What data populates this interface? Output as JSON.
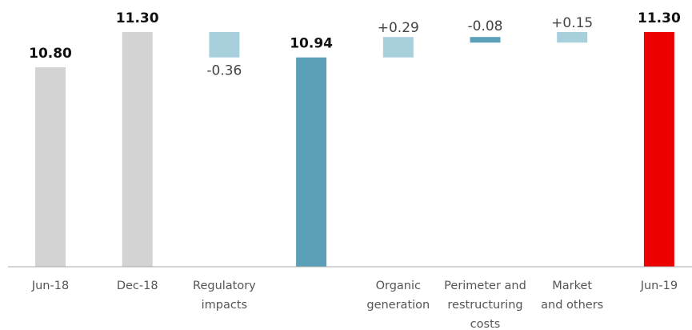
{
  "chart_data": {
    "type": "bar",
    "subtype": "waterfall",
    "title": "",
    "xlabel": "",
    "ylabel": "",
    "ylim": [
      0,
      11.3
    ],
    "grid": false,
    "legend": "none",
    "baseline_color": "#aaaaaa",
    "bars": [
      {
        "label_lines": [
          "Jun-18"
        ],
        "kind": "total",
        "value": 10.8,
        "display": "10.80",
        "color": "#d3d3d3"
      },
      {
        "label_lines": [
          "Dec-18"
        ],
        "kind": "total",
        "value": 11.3,
        "display": "11.30",
        "color": "#d3d3d3"
      },
      {
        "label_lines": [
          "Regulatory",
          "impacts"
        ],
        "kind": "delta",
        "value": -0.36,
        "display": "-0.36",
        "color": "#a8cfdc"
      },
      {
        "label_lines": [],
        "kind": "total",
        "value": 10.94,
        "display": "10.94",
        "color": "#5b9fb8"
      },
      {
        "label_lines": [
          "Organic",
          "generation"
        ],
        "kind": "delta",
        "value": 0.29,
        "display": "+0.29",
        "color": "#a8cfdc"
      },
      {
        "label_lines": [
          "Perimeter and",
          "restructuring",
          "costs"
        ],
        "kind": "delta",
        "value": -0.08,
        "display": "-0.08",
        "color": "#5b9fb8"
      },
      {
        "label_lines": [
          "Market",
          "and others"
        ],
        "kind": "delta",
        "value": 0.15,
        "display": "+0.15",
        "color": "#a8cfdc"
      },
      {
        "label_lines": [
          "Jun-19"
        ],
        "kind": "total",
        "value": 11.3,
        "display": "11.30",
        "color": "#ec0000"
      }
    ]
  }
}
